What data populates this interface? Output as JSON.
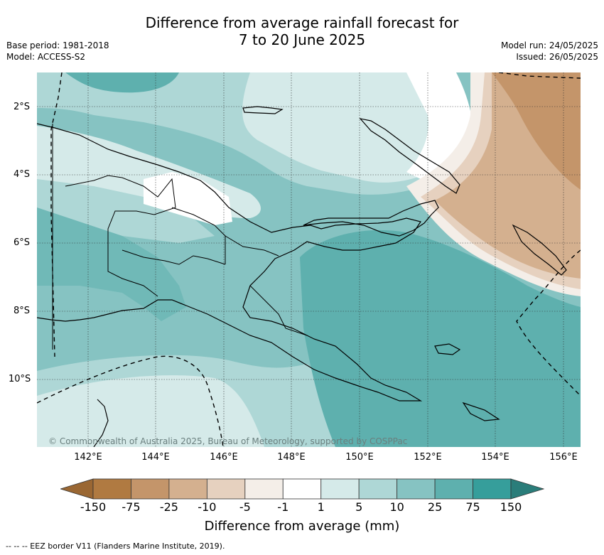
{
  "header": {
    "title_line1": "Difference from average rainfall forecast for",
    "title_line2": "7 to 20 June 2025",
    "base_period": "Base period: 1981-2018",
    "model": "Model: ACCESS-S2",
    "model_run": "Model run: 24/05/2025",
    "issued": "Issued: 26/05/2025"
  },
  "map": {
    "credit": "© Commonwealth of Australia 2025, Bureau of Meteorology, supported by COSPPac",
    "lat_labels": [
      "2°S",
      "4°S",
      "6°S",
      "8°S",
      "10°S"
    ],
    "lon_labels": [
      "142°E",
      "144°E",
      "146°E",
      "148°E",
      "150°E",
      "152°E",
      "154°E",
      "156°E"
    ]
  },
  "colorbar": {
    "title": "Difference from average (mm)",
    "ticks": [
      "-150",
      "-75",
      "-25",
      "-10",
      "-5",
      "-1",
      "1",
      "5",
      "10",
      "25",
      "75",
      "150"
    ],
    "colors": [
      "#9a6733",
      "#b07a41",
      "#c4956a",
      "#d4b08f",
      "#e6d1bf",
      "#f4eee8",
      "#ffffff",
      "#d5eae9",
      "#aed7d6",
      "#86c3c2",
      "#5eb0ae",
      "#369e9b",
      "#2a7d7a"
    ]
  },
  "legend": {
    "eez_note": "--  --  -- EEZ border V11 (Flanders Marine Institute, 2019)."
  }
}
